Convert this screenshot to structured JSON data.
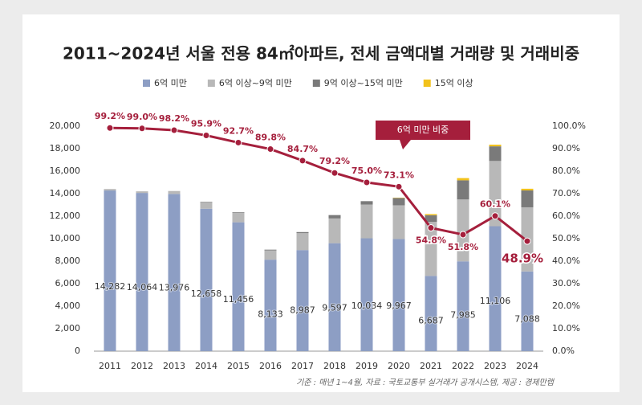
{
  "chart_data": {
    "type": "bar",
    "title": "2011~2024년 서울 전용 84㎡아파트, 전세 금액대별 거래량 및 거래비중",
    "annotation": "6억 미만 비중",
    "source": "기준 : 매년 1~4월, 자료 : 국토교통부 실거래가 공개시스템, 제공 : 경제만랩",
    "categories": [
      "2011",
      "2012",
      "2013",
      "2014",
      "2015",
      "2016",
      "2017",
      "2018",
      "2019",
      "2020",
      "2021",
      "2022",
      "2023",
      "2024"
    ],
    "stacked": true,
    "series": [
      {
        "name": "6억 미만",
        "color": "#8d9ec4",
        "values": [
          14282,
          14064,
          13976,
          12658,
          11456,
          8133,
          8987,
          9597,
          10034,
          9967,
          6687,
          7985,
          11106,
          7088
        ],
        "value_labels": [
          "14,282",
          "14,064",
          "13,976",
          "12,658",
          "11,456",
          "8,133",
          "8,987",
          "9,597",
          "10,034",
          "9,967",
          "6,687",
          "7,985",
          "11,106",
          "7,088"
        ]
      },
      {
        "name": "6억 이상~9억 미만",
        "color": "#b8b8b8",
        "values": [
          100,
          130,
          230,
          600,
          850,
          830,
          1500,
          2200,
          3000,
          3000,
          4800,
          5500,
          5800,
          5700
        ]
      },
      {
        "name": "9억 이상~15억 미만",
        "color": "#7a7a7a",
        "values": [
          20,
          10,
          20,
          30,
          50,
          60,
          100,
          300,
          300,
          650,
          600,
          1700,
          1300,
          1500
        ]
      },
      {
        "name": "15억 이상",
        "color": "#f2c21b",
        "values": [
          0,
          0,
          0,
          0,
          0,
          0,
          0,
          0,
          0,
          30,
          100,
          200,
          150,
          150
        ]
      },
      {
        "name": "6억 미만 비중",
        "type": "line",
        "axis": "y2",
        "color": "#a51f3c",
        "values": [
          99.2,
          99.0,
          98.2,
          95.9,
          92.7,
          89.8,
          84.7,
          79.2,
          75.0,
          73.1,
          54.8,
          51.8,
          60.1,
          48.9
        ],
        "value_labels": [
          "99.2%",
          "99.0%",
          "98.2%",
          "95.9%",
          "92.7%",
          "89.8%",
          "84.7%",
          "79.2%",
          "75.0%",
          "73.1%",
          "54.8%",
          "51.8%",
          "60.1%",
          "48.9%"
        ]
      }
    ],
    "ylim": [
      0,
      20000
    ],
    "yticks": [
      0,
      {
        "value": 2000,
        "label": "2,000"
      },
      {
        "value": 4000,
        "label": "4,000"
      },
      {
        "value": 6000,
        "label": "6,000"
      },
      {
        "value": 8000,
        "label": "8,000"
      },
      {
        "value": 10000,
        "label": "10,000"
      },
      {
        "value": 12000,
        "label": "12,000"
      },
      {
        "value": 14000,
        "label": "14,000"
      },
      {
        "value": 16000,
        "label": "16,000"
      },
      {
        "value": 18000,
        "label": "18,000"
      },
      {
        "value": 20000,
        "label": "20,000"
      }
    ],
    "y2lim": [
      0,
      100
    ],
    "y2ticks": [
      {
        "value": 0,
        "label": "0.0%"
      },
      {
        "value": 10,
        "label": "10.0%"
      },
      {
        "value": 20,
        "label": "20.0%"
      },
      {
        "value": 30,
        "label": "30.0%"
      },
      {
        "value": 40,
        "label": "40.0%"
      },
      {
        "value": 50,
        "label": "50.0%"
      },
      {
        "value": 60,
        "label": "60.0%"
      },
      {
        "value": 70,
        "label": "70.0%"
      },
      {
        "value": 80,
        "label": "80.0%"
      },
      {
        "value": 90,
        "label": "90.0%"
      },
      {
        "value": 100,
        "label": "100.0%"
      }
    ],
    "legend": "top"
  }
}
